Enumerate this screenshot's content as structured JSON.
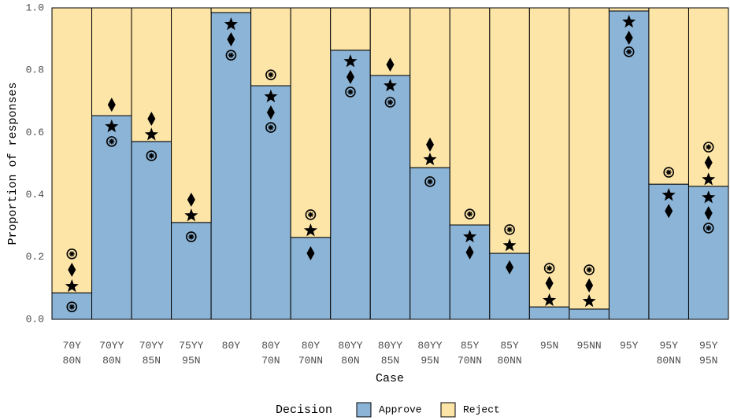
{
  "chart_data": {
    "type": "stacked-bar",
    "x_label": "Case",
    "y_label": "Proportion of responses",
    "categories": [
      "70Y\n80N",
      "70YY\n80N",
      "70YY\n85N",
      "75YY\n95N",
      "80Y",
      "80Y\n70N",
      "80Y\n70NN",
      "80YY\n80N",
      "80YY\n85N",
      "80YY\n95N",
      "85Y\n70NN",
      "85Y\n80NN",
      "95N",
      "95NN",
      "95Y",
      "95Y\n80NN",
      "95Y\n95N"
    ],
    "legend_title": "Decision",
    "series": [
      {
        "name": "Approve",
        "color": "#8cb4d6",
        "values": [
          0.085,
          0.654,
          0.571,
          0.311,
          0.985,
          0.75,
          0.263,
          0.864,
          0.783,
          0.487,
          0.303,
          0.212,
          0.04,
          0.033,
          0.99,
          0.434,
          0.427
        ]
      },
      {
        "name": "Reject",
        "color": "#fde5a8",
        "values": [
          0.915,
          0.346,
          0.429,
          0.689,
          0.015,
          0.25,
          0.737,
          0.136,
          0.217,
          0.513,
          0.697,
          0.788,
          0.96,
          0.967,
          0.01,
          0.566,
          0.573
        ]
      }
    ],
    "markers": [
      {
        "shape": "circle-asterisk",
        "color": "#000000",
        "values": [
          0.21,
          0.571,
          0.525,
          0.265,
          0.848,
          0.785,
          0.336,
          0.73,
          0.697,
          0.442,
          0.338,
          0.288,
          0.164,
          0.159,
          0.859,
          0.472,
          0.553
        ]
      },
      {
        "shape": "diamond",
        "color": "#000000",
        "values": [
          0.159,
          0.689,
          0.644,
          0.384,
          0.899,
          0.664,
          0.212,
          0.778,
          0.818,
          0.561,
          0.215,
          0.167,
          0.116,
          0.109,
          0.904,
          0.348,
          0.503
        ]
      },
      {
        "shape": "star",
        "color": "#000000",
        "values": [
          0.106,
          0.619,
          0.593,
          0.333,
          0.947,
          0.715,
          0.285,
          0.828,
          0.75,
          0.513,
          0.265,
          0.237,
          0.061,
          0.058,
          0.955,
          0.399,
          0.449
        ]
      },
      {
        "shape": "circle-asterisk",
        "color": "#000000",
        "values": [
          0.04,
          null,
          null,
          null,
          null,
          0.616,
          null,
          null,
          null,
          null,
          null,
          null,
          null,
          null,
          null,
          null,
          0.293
        ]
      },
      {
        "shape": "diamond",
        "color": "#000000",
        "values": [
          null,
          null,
          null,
          null,
          null,
          null,
          null,
          null,
          null,
          null,
          null,
          null,
          null,
          null,
          null,
          null,
          0.341
        ]
      },
      {
        "shape": "star",
        "color": "#000000",
        "values": [
          null,
          null,
          null,
          null,
          null,
          null,
          null,
          null,
          null,
          null,
          null,
          null,
          null,
          null,
          null,
          null,
          0.391
        ]
      }
    ],
    "ylim": [
      0,
      1
    ],
    "yticks": [
      {
        "value": 0,
        "label": "0.0"
      },
      {
        "value": 0.2,
        "label": "0.2"
      },
      {
        "value": 0.4,
        "label": "0.4"
      },
      {
        "value": 0.6,
        "label": "0.6"
      },
      {
        "value": 0.8,
        "label": "0.8"
      },
      {
        "value": 1,
        "label": "1.0"
      }
    ],
    "grid": true,
    "legend_position": "bottom"
  }
}
